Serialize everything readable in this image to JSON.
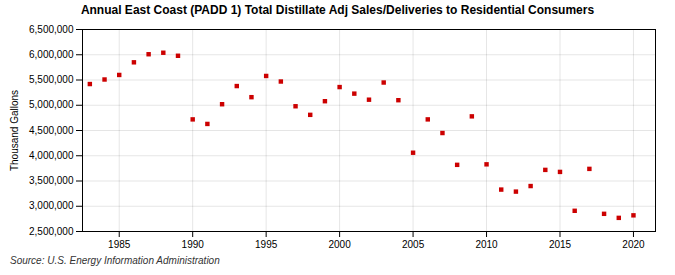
{
  "chart_data": {
    "type": "scatter",
    "title": "Annual East Coast (PADD 1) Total Distillate Adj Sales/Deliveries to Residential Consumers",
    "ylabel": "Thousand Gallons",
    "annotations": [
      "Source: U.S. Energy Information Administration"
    ],
    "x": [
      1983,
      1984,
      1985,
      1986,
      1987,
      1988,
      1989,
      1990,
      1991,
      1992,
      1993,
      1994,
      1995,
      1996,
      1997,
      1998,
      1999,
      2000,
      2001,
      2002,
      2003,
      2004,
      2005,
      2006,
      2007,
      2008,
      2009,
      2010,
      2011,
      2012,
      2013,
      2014,
      2015,
      2016,
      2017,
      2018,
      2019,
      2020
    ],
    "values": [
      5420000,
      5510000,
      5600000,
      5850000,
      6010000,
      6040000,
      5980000,
      4720000,
      4630000,
      5020000,
      5380000,
      5160000,
      5580000,
      5470000,
      4980000,
      4810000,
      5080000,
      5360000,
      5230000,
      5110000,
      5450000,
      5100000,
      4060000,
      4720000,
      4450000,
      3820000,
      4780000,
      3830000,
      3330000,
      3290000,
      3400000,
      3720000,
      3680000,
      2910000,
      3740000,
      2850000,
      2770000,
      2820000
    ],
    "color": "#cc0000",
    "marker": "square",
    "grid": true,
    "xlim": [
      1982.5,
      2021.5
    ],
    "xticks": [
      1985,
      1990,
      1995,
      2000,
      2005,
      2010,
      2015,
      2020
    ],
    "ylim": [
      2500000,
      6500000
    ],
    "yticks": [
      {
        "value": 2500000,
        "label": "2,500,000"
      },
      {
        "value": 3000000,
        "label": "3,000,000"
      },
      {
        "value": 3500000,
        "label": "3,500,000"
      },
      {
        "value": 4000000,
        "label": "4,000,000"
      },
      {
        "value": 4500000,
        "label": "4,500,000"
      },
      {
        "value": 5000000,
        "label": "5,000,000"
      },
      {
        "value": 5500000,
        "label": "5,500,000"
      },
      {
        "value": 6000000,
        "label": "6,000,000"
      },
      {
        "value": 6500000,
        "label": "6,500,000"
      }
    ]
  }
}
